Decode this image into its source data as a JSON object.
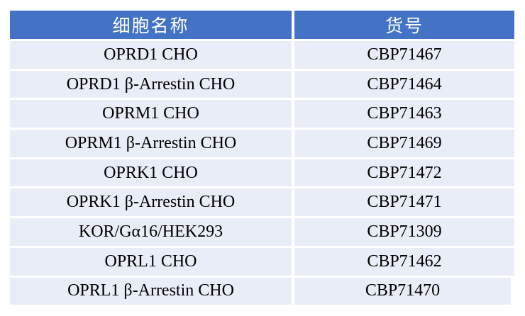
{
  "header": {
    "name": "细胞名称",
    "code": "货号"
  },
  "colors": {
    "header_bg": "#4472C4",
    "row_bg": "#E9EDF7"
  },
  "rows": [
    {
      "name": "OPRD1 CHO",
      "code": "CBP71467"
    },
    {
      "name": "OPRD1 β-Arrestin CHO",
      "code": "CBP71464"
    },
    {
      "name": "OPRM1 CHO",
      "code": "CBP71463"
    },
    {
      "name": "OPRM1 β-Arrestin CHO",
      "code": "CBP71469"
    },
    {
      "name": "OPRK1 CHO",
      "code": "CBP71472"
    },
    {
      "name": "OPRK1 β-Arrestin CHO",
      "code": "CBP71471"
    },
    {
      "name": "KOR/Gα16/HEK293",
      "code": "CBP71309"
    },
    {
      "name": "OPRL1 CHO",
      "code": "CBP71462"
    },
    {
      "name": "OPRL1 β-Arrestin CHO",
      "code": "CBP71470"
    }
  ]
}
